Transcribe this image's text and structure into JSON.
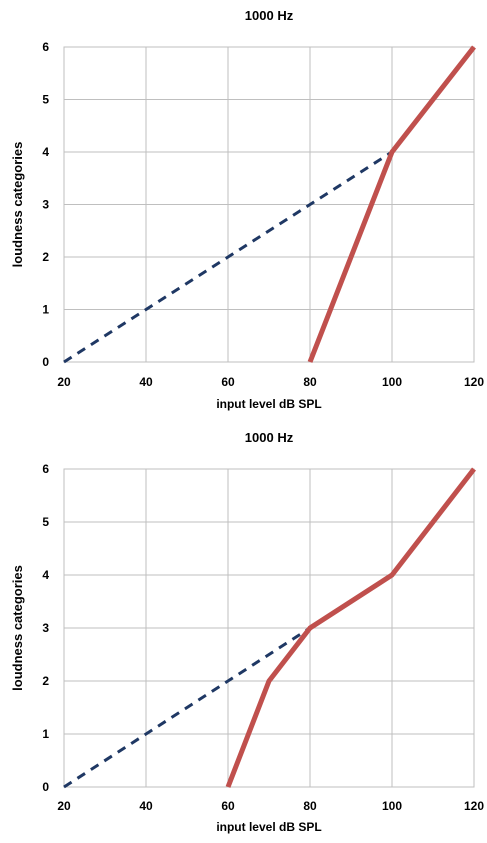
{
  "chart_data": [
    {
      "type": "line",
      "title": "1000 Hz",
      "xlabel": "input level dB SPL",
      "ylabel": "loudness categories",
      "xlim": [
        20,
        120
      ],
      "ylim": [
        0,
        6
      ],
      "xticks": [
        20,
        40,
        60,
        80,
        100,
        120
      ],
      "yticks": [
        0,
        1,
        2,
        3,
        4,
        5,
        6
      ],
      "grid": true,
      "legend": "none",
      "series": [
        {
          "style": "dashed",
          "color": "#1f3864",
          "x": [
            20,
            100
          ],
          "y": [
            0,
            4
          ]
        },
        {
          "style": "solid",
          "color": "#c0504d",
          "x": [
            80,
            100,
            120
          ],
          "y": [
            0,
            4,
            6
          ]
        }
      ]
    },
    {
      "type": "line",
      "title": "1000 Hz",
      "xlabel": "input level dB SPL",
      "ylabel": "loudness categories",
      "xlim": [
        20,
        120
      ],
      "ylim": [
        0,
        6
      ],
      "xticks": [
        20,
        40,
        60,
        80,
        100,
        120
      ],
      "yticks": [
        0,
        1,
        2,
        3,
        4,
        5,
        6
      ],
      "grid": true,
      "legend": "none",
      "series": [
        {
          "style": "dashed",
          "color": "#1f3864",
          "x": [
            20,
            80
          ],
          "y": [
            0,
            3
          ]
        },
        {
          "style": "solid",
          "color": "#c0504d",
          "x": [
            60,
            70,
            80,
            100,
            120
          ],
          "y": [
            0,
            2,
            3,
            4,
            6
          ]
        }
      ]
    }
  ]
}
